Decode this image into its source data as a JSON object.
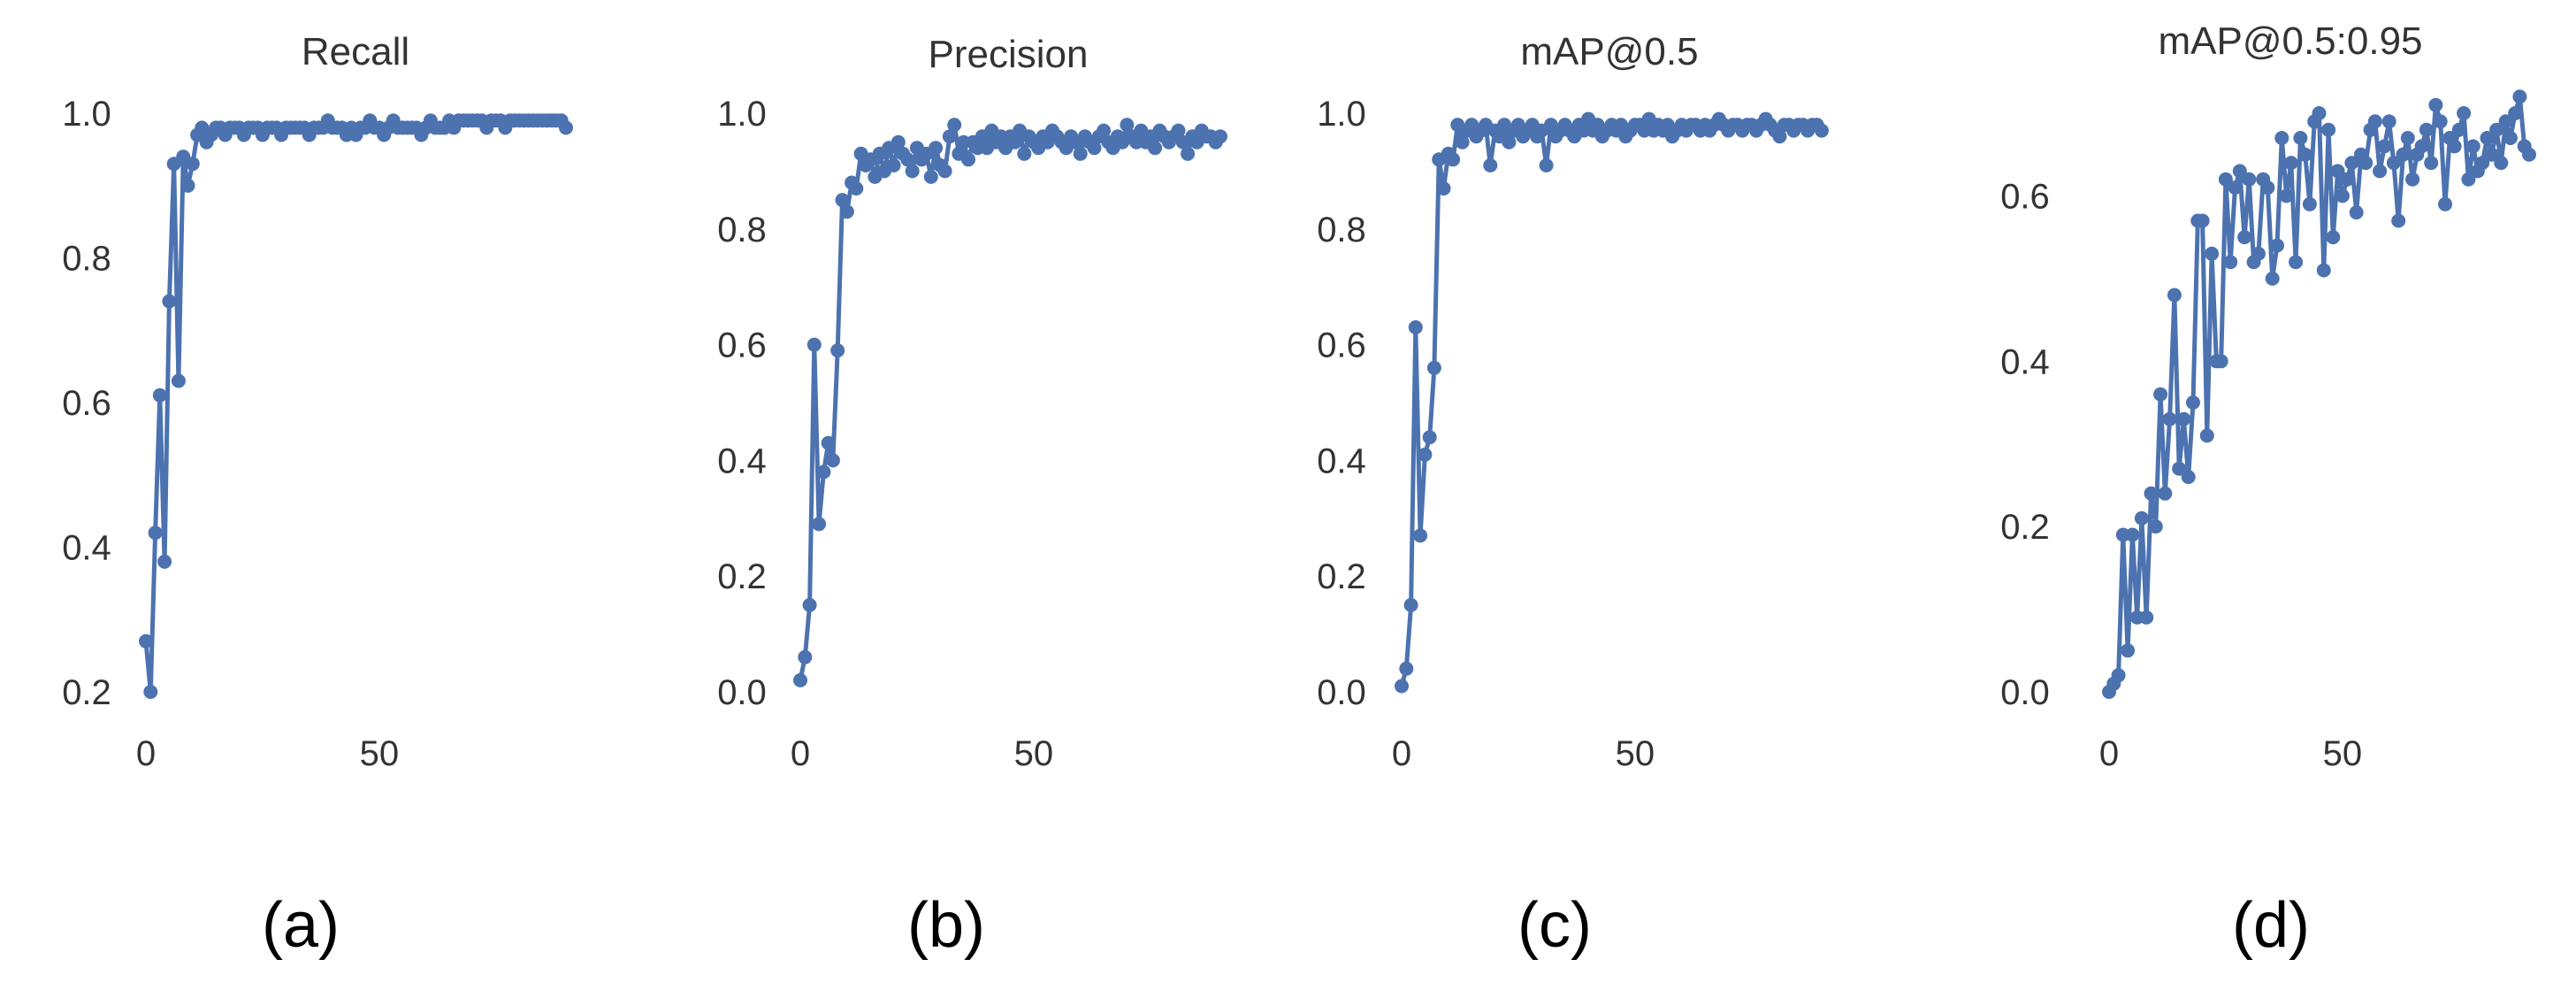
{
  "line_color": "#4c72b0",
  "axis_text_color": "#333333",
  "caption_color": "#000000",
  "chart_data": [
    {
      "type": "line",
      "title": "Recall",
      "caption": "(a)",
      "xlabel": "",
      "ylabel": "",
      "xlim": [
        0,
        90
      ],
      "ylim": [
        0.2,
        1.0
      ],
      "grid": false,
      "xticks": [
        0,
        50
      ],
      "yticks": [
        0.2,
        0.4,
        0.6,
        0.8,
        1.0
      ],
      "ytick_labels": [
        "0.2",
        "0.4",
        "0.6",
        "0.8",
        "1.0"
      ],
      "series": [
        {
          "name": "Recall",
          "x": [
            0,
            1,
            2,
            3,
            4,
            5,
            6,
            7,
            8,
            9,
            10,
            11,
            12,
            13,
            14,
            15,
            16,
            17,
            18,
            19,
            20,
            21,
            22,
            23,
            24,
            25,
            26,
            27,
            28,
            29,
            30,
            31,
            32,
            33,
            34,
            35,
            36,
            37,
            38,
            39,
            40,
            41,
            42,
            43,
            44,
            45,
            46,
            47,
            48,
            49,
            50,
            51,
            52,
            53,
            54,
            55,
            56,
            57,
            58,
            59,
            60,
            61,
            62,
            63,
            64,
            65,
            66,
            67,
            68,
            69,
            70,
            71,
            72,
            73,
            74,
            75,
            76,
            77,
            78,
            79,
            80,
            81,
            82,
            83,
            84,
            85,
            86,
            87,
            88,
            89,
            90
          ],
          "values": [
            0.27,
            0.2,
            0.42,
            0.61,
            0.38,
            0.74,
            0.93,
            0.63,
            0.94,
            0.9,
            0.93,
            0.97,
            0.98,
            0.96,
            0.97,
            0.98,
            0.98,
            0.97,
            0.98,
            0.98,
            0.98,
            0.97,
            0.98,
            0.98,
            0.98,
            0.97,
            0.98,
            0.98,
            0.98,
            0.97,
            0.98,
            0.98,
            0.98,
            0.98,
            0.98,
            0.97,
            0.98,
            0.98,
            0.98,
            0.99,
            0.98,
            0.98,
            0.98,
            0.97,
            0.98,
            0.97,
            0.98,
            0.98,
            0.99,
            0.98,
            0.98,
            0.97,
            0.98,
            0.99,
            0.98,
            0.98,
            0.98,
            0.98,
            0.98,
            0.97,
            0.98,
            0.99,
            0.98,
            0.98,
            0.98,
            0.99,
            0.98,
            0.99,
            0.99,
            0.99,
            0.99,
            0.99,
            0.99,
            0.98,
            0.99,
            0.99,
            0.99,
            0.98,
            0.99,
            0.99,
            0.99,
            0.99,
            0.99,
            0.99,
            0.99,
            0.99,
            0.99,
            0.99,
            0.99,
            0.99,
            0.98
          ]
        }
      ]
    },
    {
      "type": "line",
      "title": "Precision",
      "caption": "(b)",
      "xlabel": "",
      "ylabel": "",
      "xlim": [
        0,
        90
      ],
      "ylim": [
        0.0,
        1.0
      ],
      "grid": false,
      "xticks": [
        0,
        50
      ],
      "yticks": [
        0.0,
        0.2,
        0.4,
        0.6,
        0.8,
        1.0
      ],
      "ytick_labels": [
        "0.0",
        "0.2",
        "0.4",
        "0.6",
        "0.8",
        "1.0"
      ],
      "series": [
        {
          "name": "Precision",
          "x": [
            0,
            1,
            2,
            3,
            4,
            5,
            6,
            7,
            8,
            9,
            10,
            11,
            12,
            13,
            14,
            15,
            16,
            17,
            18,
            19,
            20,
            21,
            22,
            23,
            24,
            25,
            26,
            27,
            28,
            29,
            30,
            31,
            32,
            33,
            34,
            35,
            36,
            37,
            38,
            39,
            40,
            41,
            42,
            43,
            44,
            45,
            46,
            47,
            48,
            49,
            50,
            51,
            52,
            53,
            54,
            55,
            56,
            57,
            58,
            59,
            60,
            61,
            62,
            63,
            64,
            65,
            66,
            67,
            68,
            69,
            70,
            71,
            72,
            73,
            74,
            75,
            76,
            77,
            78,
            79,
            80,
            81,
            82,
            83,
            84,
            85,
            86,
            87,
            88,
            89,
            90
          ],
          "values": [
            0.02,
            0.06,
            0.15,
            0.6,
            0.29,
            0.38,
            0.43,
            0.4,
            0.59,
            0.85,
            0.83,
            0.88,
            0.87,
            0.93,
            0.91,
            0.92,
            0.89,
            0.93,
            0.9,
            0.94,
            0.91,
            0.95,
            0.93,
            0.92,
            0.9,
            0.94,
            0.92,
            0.93,
            0.89,
            0.94,
            0.91,
            0.9,
            0.96,
            0.98,
            0.93,
            0.95,
            0.92,
            0.95,
            0.94,
            0.96,
            0.94,
            0.97,
            0.95,
            0.96,
            0.94,
            0.96,
            0.95,
            0.97,
            0.93,
            0.96,
            0.95,
            0.94,
            0.96,
            0.95,
            0.97,
            0.96,
            0.95,
            0.94,
            0.96,
            0.95,
            0.93,
            0.96,
            0.95,
            0.94,
            0.96,
            0.97,
            0.95,
            0.94,
            0.96,
            0.95,
            0.98,
            0.96,
            0.95,
            0.97,
            0.95,
            0.96,
            0.94,
            0.97,
            0.96,
            0.95,
            0.96,
            0.97,
            0.95,
            0.93,
            0.96,
            0.95,
            0.97,
            0.96,
            0.96,
            0.95,
            0.96
          ]
        }
      ]
    },
    {
      "type": "line",
      "title": "mAP@0.5",
      "caption": "(c)",
      "xlabel": "",
      "ylabel": "",
      "xlim": [
        0,
        90
      ],
      "ylim": [
        0.0,
        1.0
      ],
      "grid": false,
      "xticks": [
        0,
        50
      ],
      "yticks": [
        0.0,
        0.2,
        0.4,
        0.6,
        0.8,
        1.0
      ],
      "ytick_labels": [
        "0.0",
        "0.2",
        "0.4",
        "0.6",
        "0.8",
        "1.0"
      ],
      "series": [
        {
          "name": "mAP@0.5",
          "x": [
            0,
            1,
            2,
            3,
            4,
            5,
            6,
            7,
            8,
            9,
            10,
            11,
            12,
            13,
            14,
            15,
            16,
            17,
            18,
            19,
            20,
            21,
            22,
            23,
            24,
            25,
            26,
            27,
            28,
            29,
            30,
            31,
            32,
            33,
            34,
            35,
            36,
            37,
            38,
            39,
            40,
            41,
            42,
            43,
            44,
            45,
            46,
            47,
            48,
            49,
            50,
            51,
            52,
            53,
            54,
            55,
            56,
            57,
            58,
            59,
            60,
            61,
            62,
            63,
            64,
            65,
            66,
            67,
            68,
            69,
            70,
            71,
            72,
            73,
            74,
            75,
            76,
            77,
            78,
            79,
            80,
            81,
            82,
            83,
            84,
            85,
            86,
            87,
            88,
            89,
            90
          ],
          "values": [
            0.01,
            0.04,
            0.15,
            0.63,
            0.27,
            0.41,
            0.44,
            0.56,
            0.92,
            0.87,
            0.93,
            0.92,
            0.98,
            0.95,
            0.97,
            0.98,
            0.96,
            0.97,
            0.98,
            0.91,
            0.97,
            0.96,
            0.98,
            0.95,
            0.97,
            0.98,
            0.96,
            0.97,
            0.98,
            0.96,
            0.97,
            0.91,
            0.98,
            0.96,
            0.97,
            0.98,
            0.97,
            0.96,
            0.98,
            0.97,
            0.99,
            0.97,
            0.98,
            0.96,
            0.97,
            0.98,
            0.97,
            0.98,
            0.96,
            0.97,
            0.98,
            0.98,
            0.97,
            0.99,
            0.97,
            0.98,
            0.97,
            0.98,
            0.96,
            0.97,
            0.98,
            0.97,
            0.98,
            0.98,
            0.97,
            0.98,
            0.97,
            0.98,
            0.99,
            0.98,
            0.97,
            0.98,
            0.98,
            0.97,
            0.98,
            0.98,
            0.97,
            0.98,
            0.99,
            0.98,
            0.97,
            0.96,
            0.98,
            0.98,
            0.97,
            0.98,
            0.98,
            0.97,
            0.98,
            0.98,
            0.97
          ]
        }
      ]
    },
    {
      "type": "line",
      "title": "mAP@0.5:0.95",
      "caption": "(d)",
      "xlabel": "",
      "ylabel": "",
      "xlim": [
        0,
        90
      ],
      "ylim": [
        0.0,
        0.7
      ],
      "grid": false,
      "xticks": [
        0,
        50
      ],
      "yticks": [
        0.0,
        0.2,
        0.4,
        0.6
      ],
      "ytick_labels": [
        "0.0",
        "0.2",
        "0.4",
        "0.6"
      ],
      "series": [
        {
          "name": "mAP@0.5:0.95",
          "x": [
            0,
            1,
            2,
            3,
            4,
            5,
            6,
            7,
            8,
            9,
            10,
            11,
            12,
            13,
            14,
            15,
            16,
            17,
            18,
            19,
            20,
            21,
            22,
            23,
            24,
            25,
            26,
            27,
            28,
            29,
            30,
            31,
            32,
            33,
            34,
            35,
            36,
            37,
            38,
            39,
            40,
            41,
            42,
            43,
            44,
            45,
            46,
            47,
            48,
            49,
            50,
            51,
            52,
            53,
            54,
            55,
            56,
            57,
            58,
            59,
            60,
            61,
            62,
            63,
            64,
            65,
            66,
            67,
            68,
            69,
            70,
            71,
            72,
            73,
            74,
            75,
            76,
            77,
            78,
            79,
            80,
            81,
            82,
            83,
            84,
            85,
            86,
            87,
            88,
            89,
            90
          ],
          "values": [
            0.0,
            0.01,
            0.02,
            0.19,
            0.05,
            0.19,
            0.09,
            0.21,
            0.09,
            0.24,
            0.2,
            0.36,
            0.24,
            0.33,
            0.48,
            0.27,
            0.33,
            0.26,
            0.35,
            0.57,
            0.57,
            0.31,
            0.53,
            0.4,
            0.4,
            0.62,
            0.52,
            0.61,
            0.63,
            0.55,
            0.62,
            0.52,
            0.53,
            0.62,
            0.61,
            0.5,
            0.54,
            0.67,
            0.6,
            0.64,
            0.52,
            0.67,
            0.65,
            0.59,
            0.69,
            0.7,
            0.51,
            0.68,
            0.55,
            0.63,
            0.6,
            0.62,
            0.64,
            0.58,
            0.65,
            0.64,
            0.68,
            0.69,
            0.63,
            0.66,
            0.69,
            0.64,
            0.57,
            0.65,
            0.67,
            0.62,
            0.65,
            0.66,
            0.68,
            0.64,
            0.71,
            0.69,
            0.59,
            0.67,
            0.66,
            0.68,
            0.7,
            0.62,
            0.66,
            0.63,
            0.64,
            0.67,
            0.65,
            0.68,
            0.64,
            0.69,
            0.67,
            0.7,
            0.72,
            0.66,
            0.65
          ]
        }
      ]
    }
  ]
}
